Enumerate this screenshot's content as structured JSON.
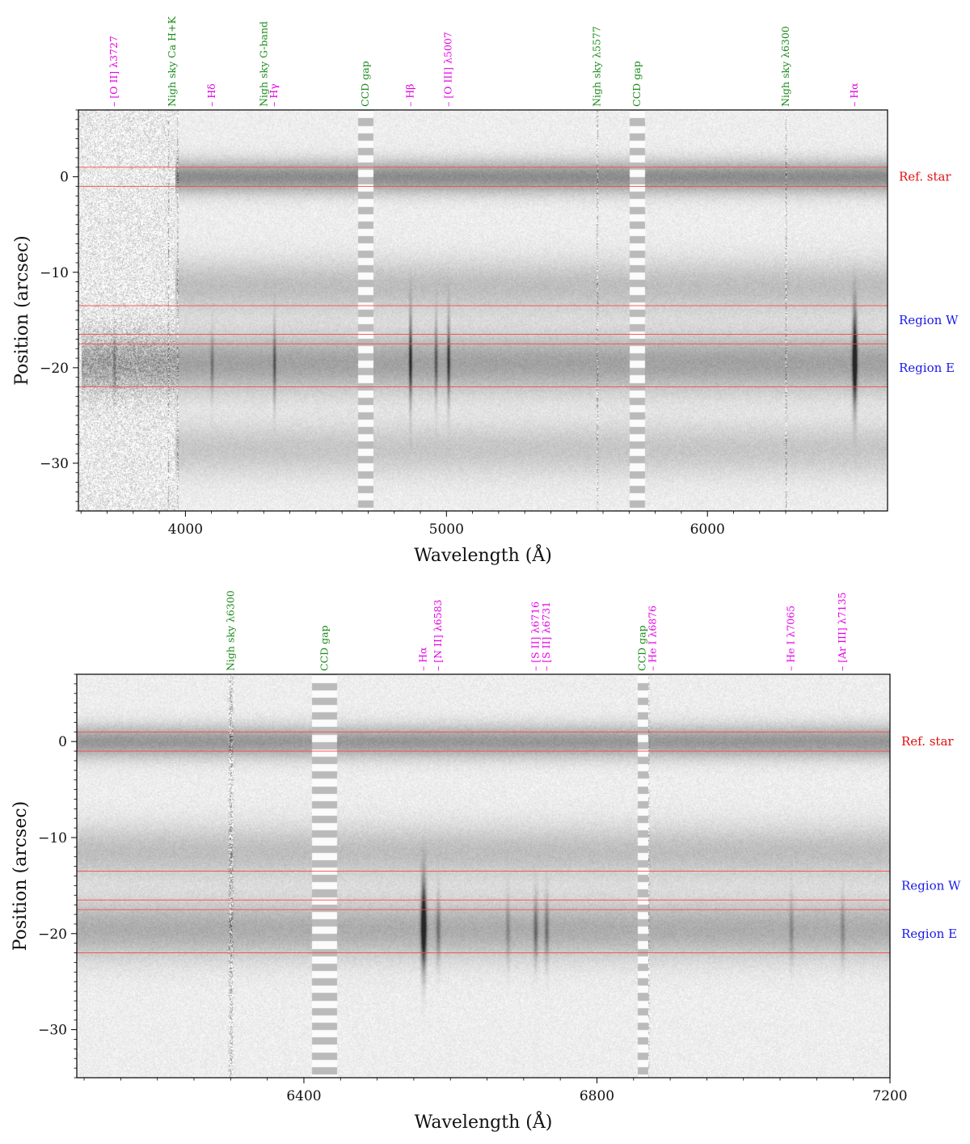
{
  "colors": {
    "emission": "#e600e6",
    "sky": "#1a8a1a",
    "ref": "#e01010",
    "region": "#1a1ae6",
    "guide": "#ff4444"
  },
  "chart_data": [
    {
      "type": "heatmap",
      "title": "",
      "xlabel": "Wavelength (Å)",
      "ylabel": "Position (arcsec)",
      "xlim": [
        3590,
        6690
      ],
      "ylim": [
        -35,
        7
      ],
      "xticks": [
        4000,
        5000,
        6000
      ],
      "yticks": [
        0,
        -10,
        -20,
        -30
      ],
      "xminor_step": 100,
      "yminor_step": 1,
      "guide_lines": [
        1,
        -1,
        -13.5,
        -16.5,
        -17.5,
        -22
      ],
      "region_labels": [
        {
          "text": "Ref. star",
          "y": 0,
          "kind": "ref"
        },
        {
          "text": "Region W",
          "y": -15,
          "kind": "region"
        },
        {
          "text": "Region E",
          "y": -20,
          "kind": "region"
        }
      ],
      "continua": [
        {
          "y": 0,
          "strength": 0.45,
          "width": 1.2,
          "xmin": 3960
        },
        {
          "y": -11.5,
          "strength": 0.22,
          "width": 2.0,
          "xmin": 3960
        },
        {
          "y": -19.5,
          "strength": 0.35,
          "width": 2.2,
          "xmin": 3600
        },
        {
          "y": -28.5,
          "strength": 0.18,
          "width": 2.0,
          "xmin": 3960
        }
      ],
      "emission_blobs": [
        {
          "x": 3727,
          "y": -19.5,
          "strength": 0.25,
          "sigx": 4,
          "sigy": 2.5
        },
        {
          "x": 4101,
          "y": -19.5,
          "strength": 0.25,
          "sigx": 4,
          "sigy": 2.5
        },
        {
          "x": 4340,
          "y": -19.5,
          "strength": 0.4,
          "sigx": 4,
          "sigy": 3
        },
        {
          "x": 4861,
          "y": -19,
          "strength": 0.65,
          "sigx": 4,
          "sigy": 3.5
        },
        {
          "x": 4959,
          "y": -19,
          "strength": 0.4,
          "sigx": 4,
          "sigy": 3
        },
        {
          "x": 5007,
          "y": -19,
          "strength": 0.55,
          "sigx": 4,
          "sigy": 3.2
        },
        {
          "x": 6563,
          "y": -19,
          "strength": 1.0,
          "sigx": 6,
          "sigy": 3.5
        }
      ],
      "sky_lines": [
        3934,
        3969,
        5577,
        6300
      ],
      "ccd_gaps": [
        [
          4660,
          4720
        ],
        [
          5700,
          5760
        ]
      ],
      "noise_edge": 3960,
      "line_labels": [
        {
          "x": 3727,
          "text": "[O II] λ3727",
          "kind": "emission"
        },
        {
          "x": 3950,
          "text": "Nigh sky Ca H+K",
          "kind": "sky"
        },
        {
          "x": 4101,
          "text": "Hδ",
          "kind": "emission"
        },
        {
          "x": 4300,
          "text": "Nigh sky G-band",
          "kind": "sky"
        },
        {
          "x": 4340,
          "text": "Hγ",
          "kind": "emission"
        },
        {
          "x": 4690,
          "text": "CCD gap",
          "kind": "sky"
        },
        {
          "x": 4861,
          "text": "Hβ",
          "kind": "emission"
        },
        {
          "x": 5007,
          "text": "[O III] λ5007",
          "kind": "emission"
        },
        {
          "x": 5577,
          "text": "Nigh sky λ5577",
          "kind": "sky"
        },
        {
          "x": 5730,
          "text": "CCD gap",
          "kind": "sky"
        },
        {
          "x": 6300,
          "text": "Nigh sky λ6300",
          "kind": "sky"
        },
        {
          "x": 6563,
          "text": "Hα",
          "kind": "emission"
        }
      ]
    },
    {
      "type": "heatmap",
      "title": "",
      "xlabel": "Wavelength (Å)",
      "ylabel": "Position (arcsec)",
      "xlim": [
        6090,
        7200
      ],
      "ylim": [
        -35,
        7
      ],
      "xticks": [
        6400,
        6800,
        7200
      ],
      "yticks": [
        0,
        -10,
        -20,
        -30
      ],
      "xminor_step": 50,
      "yminor_step": 1,
      "guide_lines": [
        1,
        -1,
        -13.5,
        -16.5,
        -17.5,
        -22
      ],
      "region_labels": [
        {
          "text": "Ref. star",
          "y": 0,
          "kind": "ref"
        },
        {
          "text": "Region W",
          "y": -15,
          "kind": "region"
        },
        {
          "text": "Region E",
          "y": -20,
          "kind": "region"
        }
      ],
      "continua": [
        {
          "y": 0,
          "strength": 0.4,
          "width": 1.2,
          "xmin": 6090
        },
        {
          "y": -11.5,
          "strength": 0.22,
          "width": 2.0,
          "xmin": 6090
        },
        {
          "y": -19.5,
          "strength": 0.3,
          "width": 2.2,
          "xmin": 6090
        }
      ],
      "emission_blobs": [
        {
          "x": 6563,
          "y": -19,
          "strength": 1.0,
          "sigx": 2.5,
          "sigy": 3.2
        },
        {
          "x": 6583,
          "y": -19.5,
          "strength": 0.3,
          "sigx": 2,
          "sigy": 2.5
        },
        {
          "x": 6716,
          "y": -19.5,
          "strength": 0.35,
          "sigx": 2,
          "sigy": 2.5
        },
        {
          "x": 6731,
          "y": -19.5,
          "strength": 0.3,
          "sigx": 2,
          "sigy": 2.5
        },
        {
          "x": 6678,
          "y": -19.5,
          "strength": 0.2,
          "sigx": 2,
          "sigy": 2.5
        },
        {
          "x": 7065,
          "y": -19.5,
          "strength": 0.2,
          "sigx": 2,
          "sigy": 2.5
        },
        {
          "x": 7135,
          "y": -19.5,
          "strength": 0.2,
          "sigx": 2,
          "sigy": 2.5
        }
      ],
      "sky_lines": [
        6300,
        6863,
        6868
      ],
      "ccd_gaps": [
        [
          6410,
          6445
        ],
        [
          6855,
          6870
        ]
      ],
      "noise_edge": null,
      "line_labels": [
        {
          "x": 6300,
          "text": "Nigh sky λ6300",
          "kind": "sky"
        },
        {
          "x": 6428,
          "text": "CCD gap",
          "kind": "sky"
        },
        {
          "x": 6563,
          "text": "Hα",
          "kind": "emission"
        },
        {
          "x": 6583,
          "text": "[N II] λ6583",
          "kind": "emission"
        },
        {
          "x": 6716,
          "text": "[S II] λ6716",
          "kind": "emission"
        },
        {
          "x": 6731,
          "text": "[S II] λ6731",
          "kind": "emission"
        },
        {
          "x": 6862,
          "text": "CCD gap",
          "kind": "sky"
        },
        {
          "x": 6876,
          "text": "He I λ6876",
          "kind": "emission"
        },
        {
          "x": 7065,
          "text": "He I λ7065",
          "kind": "emission"
        },
        {
          "x": 7135,
          "text": "[Ar III] λ7135",
          "kind": "emission"
        }
      ]
    }
  ]
}
